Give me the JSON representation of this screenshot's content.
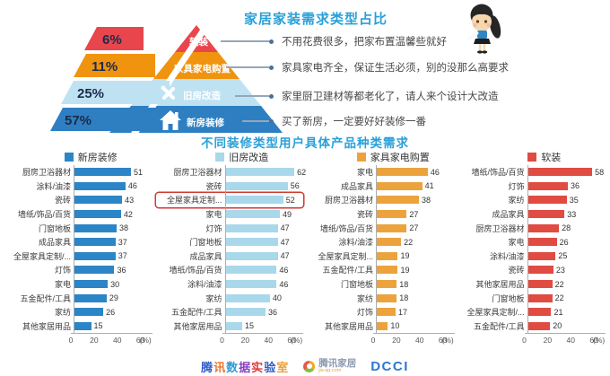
{
  "header": {
    "title": "家居家装需求类型占比",
    "title_color": "#2aa0d8",
    "items": [
      {
        "pct": "6%",
        "label": "软装",
        "color": "#e8464c",
        "desc": "不用花费很多，把家布置温馨些就好"
      },
      {
        "pct": "11%",
        "label": "家具家电购置",
        "color": "#f0930f",
        "desc": "家具家电齐全，保证生活必须，别的没那么高要求"
      },
      {
        "pct": "25%",
        "label": "旧房改造",
        "color": "#bfe2f2",
        "desc": "家里厨卫建材等都老化了，请人来个设计大改造",
        "icon": "tools-icon"
      },
      {
        "pct": "57%",
        "label": "新房装修",
        "color": "#2e7fc2",
        "desc": "买了新房，一定要好好装修一番",
        "icon": "house-icon"
      }
    ]
  },
  "section_title": "不同装修类型用户具体产品种类需求",
  "section_title_color": "#2aa0d8",
  "chart_data": [
    {
      "type": "bar",
      "orientation": "horizontal",
      "legend": "新房装修",
      "color": "#2c85c7",
      "categories": [
        "厨房卫浴器材",
        "涂料/油漆",
        "瓷砖",
        "墙纸/饰品/百货",
        "门窗地板",
        "成品家具",
        "全屋家具定制/...",
        "灯饰",
        "家电",
        "五金配件/工具",
        "家纺",
        "其他家居用品"
      ],
      "values": [
        51,
        46,
        43,
        42,
        38,
        37,
        37,
        36,
        30,
        29,
        26,
        15
      ],
      "x_ticks": [
        0,
        20,
        40,
        60
      ],
      "x_unit": "(%)",
      "xlim": [
        0,
        70
      ],
      "highlight_index": null
    },
    {
      "type": "bar",
      "orientation": "horizontal",
      "legend": "旧房改造",
      "color": "#a9d8eb",
      "categories": [
        "厨房卫浴器材",
        "瓷砖",
        "全屋家具定制...",
        "家电",
        "灯饰",
        "门窗地板",
        "成品家具",
        "墙纸/饰品/百货",
        "涂料/油漆",
        "家纺",
        "五金配件/工具",
        "其他家居用品"
      ],
      "values": [
        62,
        56,
        52,
        49,
        47,
        47,
        47,
        46,
        46,
        40,
        36,
        15
      ],
      "x_ticks": [
        0,
        20,
        40,
        60
      ],
      "x_unit": "(%)",
      "xlim": [
        0,
        70
      ],
      "highlight_index": 2,
      "highlight_color": "#cd3a30"
    },
    {
      "type": "bar",
      "orientation": "horizontal",
      "legend": "家具家电购置",
      "color": "#eca33d",
      "categories": [
        "家电",
        "成品家具",
        "厨房卫浴器材",
        "瓷砖",
        "墙纸/饰品/百货",
        "涂料/油漆",
        "全屋家具定制...",
        "五金配件/工具",
        "门窗地板",
        "家纺",
        "灯饰",
        "其他家居用品"
      ],
      "values": [
        46,
        41,
        38,
        27,
        27,
        22,
        19,
        19,
        18,
        18,
        17,
        10
      ],
      "x_ticks": [
        0,
        20,
        40,
        60
      ],
      "x_unit": "(%)",
      "xlim": [
        0,
        70
      ],
      "highlight_index": null
    },
    {
      "type": "bar",
      "orientation": "horizontal",
      "legend": "软装",
      "color": "#e04b42",
      "categories": [
        "墙纸/饰品/百货",
        "灯饰",
        "家纺",
        "成品家具",
        "厨房卫浴器材",
        "家电",
        "涂料/油漆",
        "瓷砖",
        "其他家居用品",
        "门窗地板",
        "全屋家具定制/...",
        "五金配件/工具"
      ],
      "values": [
        58,
        36,
        35,
        33,
        28,
        26,
        25,
        23,
        22,
        22,
        21,
        20
      ],
      "x_ticks": [
        0,
        20,
        40,
        60
      ],
      "x_unit": "(%)",
      "xlim": [
        0,
        70
      ],
      "highlight_index": null
    }
  ],
  "footer": {
    "data_lab_text": "腾讯数据实验室",
    "data_lab_colors": [
      "#2f5bc4",
      "#e8752c",
      "#2f9bd6",
      "#8b3fbf",
      "#e03a3a",
      "#2f5bc4",
      "#e8a23d"
    ],
    "home_logo_text": "腾讯家居",
    "home_logo_sub": "jia.qq.com",
    "dcci_text": "DCCI"
  }
}
